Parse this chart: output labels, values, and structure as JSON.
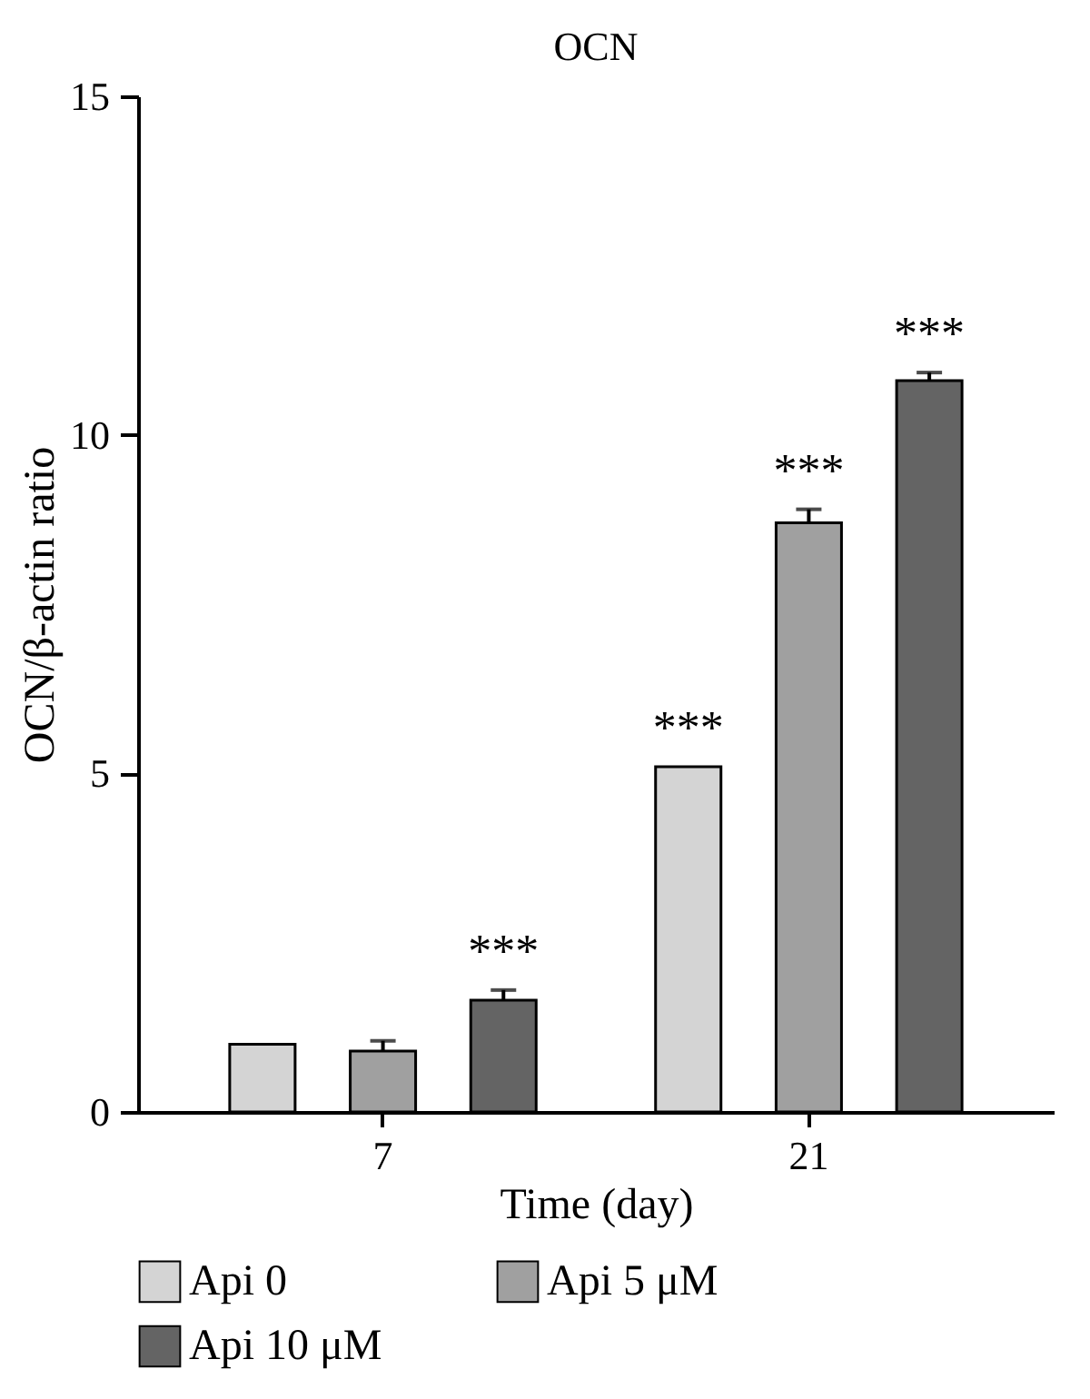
{
  "chart_data": {
    "type": "bar",
    "title": "OCN",
    "xlabel": "Time (day)",
    "ylabel": "OCN/β-actin ratio",
    "categories": [
      "7",
      "21"
    ],
    "series": [
      {
        "name": "Api 0",
        "color": "#d4d4d4",
        "values": [
          1.0,
          5.1
        ],
        "errors": [
          null,
          null
        ],
        "value_labels": [
          null,
          "***"
        ]
      },
      {
        "name": "Api 5 μM",
        "color": "#a0a0a0",
        "values": [
          0.9,
          8.7
        ],
        "errors": [
          0.15,
          0.2
        ],
        "value_labels": [
          null,
          "***"
        ]
      },
      {
        "name": "Api 10 μM",
        "color": "#646464",
        "values": [
          1.65,
          10.8
        ],
        "errors": [
          0.15,
          0.12
        ],
        "value_labels": [
          "***",
          "***"
        ]
      }
    ],
    "ylim": [
      0,
      15
    ],
    "yticks": [
      0,
      5,
      10,
      15
    ],
    "grid": false,
    "legend": "bottom"
  }
}
